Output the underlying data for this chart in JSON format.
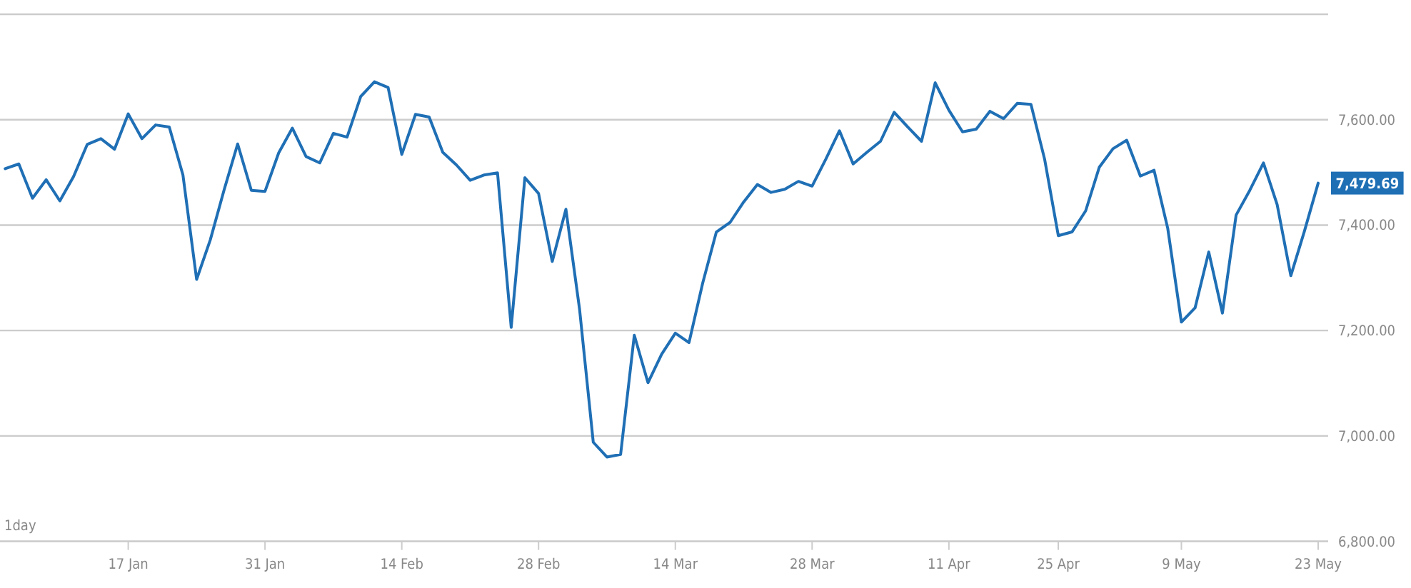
{
  "chart_data": {
    "type": "line",
    "categories": [
      null,
      null,
      null,
      null,
      null,
      null,
      null,
      null,
      null,
      "17 Jan",
      null,
      null,
      null,
      null,
      null,
      null,
      null,
      null,
      null,
      "31 Jan",
      null,
      null,
      null,
      null,
      null,
      null,
      null,
      null,
      null,
      "14 Feb",
      null,
      null,
      null,
      null,
      null,
      null,
      null,
      null,
      null,
      "28 Feb",
      null,
      null,
      null,
      null,
      null,
      null,
      null,
      null,
      null,
      "14 Mar",
      null,
      null,
      null,
      null,
      null,
      null,
      null,
      null,
      null,
      "28 Mar",
      null,
      null,
      null,
      null,
      null,
      null,
      null,
      null,
      null,
      "11 Apr",
      null,
      null,
      null,
      null,
      null,
      null,
      null,
      "25 Apr",
      null,
      null,
      null,
      null,
      null,
      null,
      null,
      null,
      "9 May",
      null,
      null,
      null,
      null,
      null,
      null,
      null,
      null,
      null,
      "23 May"
    ],
    "series": [
      {
        "color": "#1f6fb5",
        "values": [
          7507,
          7516,
          7451,
          7486,
          7446,
          7492,
          7553,
          7564,
          7544,
          7611,
          7564,
          7590,
          7586,
          7495,
          7297,
          7372,
          7466,
          7554,
          7466,
          7464,
          7537,
          7584,
          7530,
          7518,
          7574,
          7567,
          7644,
          7672,
          7661,
          7534,
          7610,
          7605,
          7538,
          7514,
          7485,
          7495,
          7499,
          7206,
          7490,
          7460,
          7331,
          7430,
          7240,
          6988,
          6960,
          6965,
          7191,
          7101,
          7155,
          7195,
          7177,
          7290,
          7387,
          7405,
          7444,
          7477,
          7462,
          7468,
          7483,
          7474,
          7525,
          7579,
          7516,
          7538,
          7559,
          7614,
          7586,
          7559,
          7670,
          7618,
          7577,
          7582,
          7616,
          7602,
          7631,
          7629,
          7525,
          7380,
          7387,
          7427,
          7510,
          7545,
          7561,
          7493,
          7504,
          7394,
          7216,
          7243,
          7349,
          7233,
          7419,
          7466,
          7518,
          7439,
          7304,
          7389,
          7479.69
        ],
        "value_labels": [
          null,
          null,
          null,
          null,
          null,
          null,
          null,
          null,
          null,
          null,
          null,
          null,
          null,
          null,
          null,
          null,
          null,
          null,
          null,
          null,
          null,
          null,
          null,
          null,
          null,
          null,
          null,
          null,
          null,
          null,
          null,
          null,
          null,
          null,
          null,
          null,
          null,
          null,
          null,
          null,
          null,
          null,
          null,
          null,
          null,
          null,
          null,
          null,
          null,
          null,
          null,
          null,
          null,
          null,
          null,
          null,
          null,
          null,
          null,
          null,
          null,
          null,
          null,
          null,
          null,
          null,
          null,
          null,
          null,
          null,
          null,
          null,
          null,
          null,
          null,
          null,
          null,
          null,
          null,
          null,
          null,
          null,
          null,
          null,
          null,
          null,
          null,
          null,
          null,
          null,
          null,
          null,
          null,
          null,
          null,
          null,
          "7,479.69"
        ]
      }
    ],
    "ylim": [
      6800,
      7800
    ],
    "yticks": [
      {
        "value": 6800,
        "label": "6,800.00"
      },
      {
        "value": 7000,
        "label": "7,000.00"
      },
      {
        "value": 7200,
        "label": "7,200.00"
      },
      {
        "value": 7400,
        "label": "7,400.00"
      },
      {
        "value": 7600,
        "label": "7,600.00"
      },
      {
        "value": 7800,
        "label": null
      }
    ],
    "grid": "y",
    "annotations": [
      "1day"
    ]
  }
}
